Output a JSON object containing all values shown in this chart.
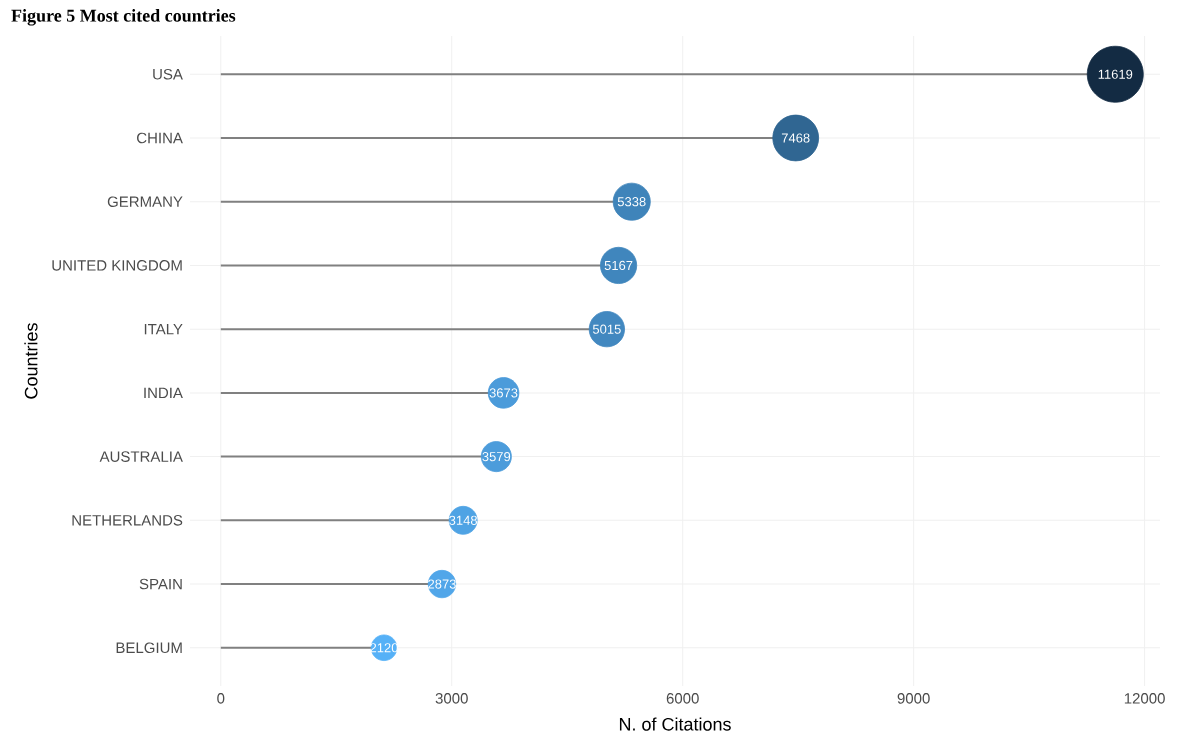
{
  "chart_data": {
    "type": "lollipop",
    "orientation": "horizontal",
    "title": "Figure 5 Most cited countries",
    "xlabel": "N. of Citations",
    "ylabel": "Countries",
    "categories": [
      "USA",
      "CHINA",
      "GERMANY",
      "UNITED KINGDOM",
      "ITALY",
      "INDIA",
      "AUSTRALIA",
      "NETHERLANDS",
      "SPAIN",
      "BELGIUM"
    ],
    "values": [
      11619,
      7468,
      5338,
      5167,
      5015,
      3673,
      3579,
      3148,
      2873,
      2120
    ],
    "sizes": [
      1,
      0.67,
      0.44,
      0.42,
      0.4,
      0.3,
      0.29,
      0.25,
      0.24,
      0.21
    ],
    "colors": [
      "#132b43",
      "#306692",
      "#3f84ba",
      "#4086bd",
      "#4288c0",
      "#4b9bda",
      "#4c9cdb",
      "#4fa3e4",
      "#51a6e9",
      "#56b1f7"
    ],
    "xlim": [
      -400,
      12200
    ],
    "xticks": [
      0,
      3000,
      6000,
      9000,
      12000
    ],
    "grid": true,
    "marker": "circle",
    "data_labels": true
  }
}
